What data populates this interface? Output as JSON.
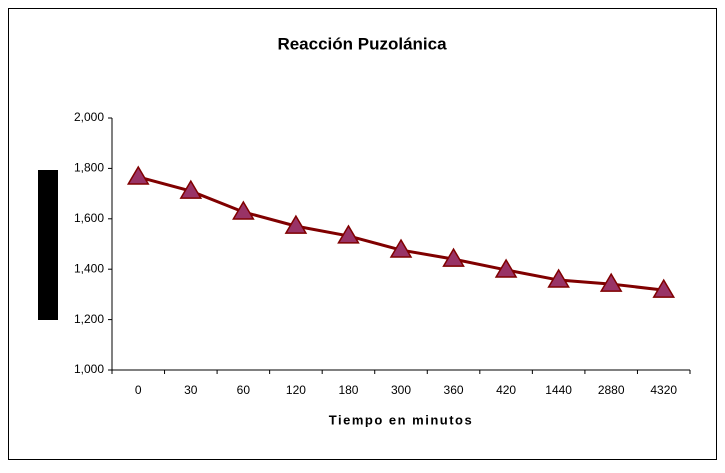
{
  "chart_data": {
    "type": "line",
    "title": "Reacción Puzolánica",
    "x_label": "Tiempo en minutos",
    "categories": [
      "0",
      "30",
      "60",
      "120",
      "180",
      "300",
      "360",
      "420",
      "1440",
      "2880",
      "4320"
    ],
    "values": [
      1766,
      1710,
      1627,
      1571,
      1532,
      1476,
      1440,
      1397,
      1357,
      1341,
      1317
    ],
    "color": "#800000",
    "marker_color": "#993366",
    "ylim": [
      1000,
      2000
    ],
    "yticks": [
      {
        "value": 1000,
        "label": "1,000"
      },
      {
        "value": 1200,
        "label": "1,200"
      },
      {
        "value": 1400,
        "label": "1,400"
      },
      {
        "value": 1600,
        "label": "1,600"
      },
      {
        "value": 1800,
        "label": "1,800"
      },
      {
        "value": 2000,
        "label": "2,000"
      }
    ],
    "grid": false
  }
}
